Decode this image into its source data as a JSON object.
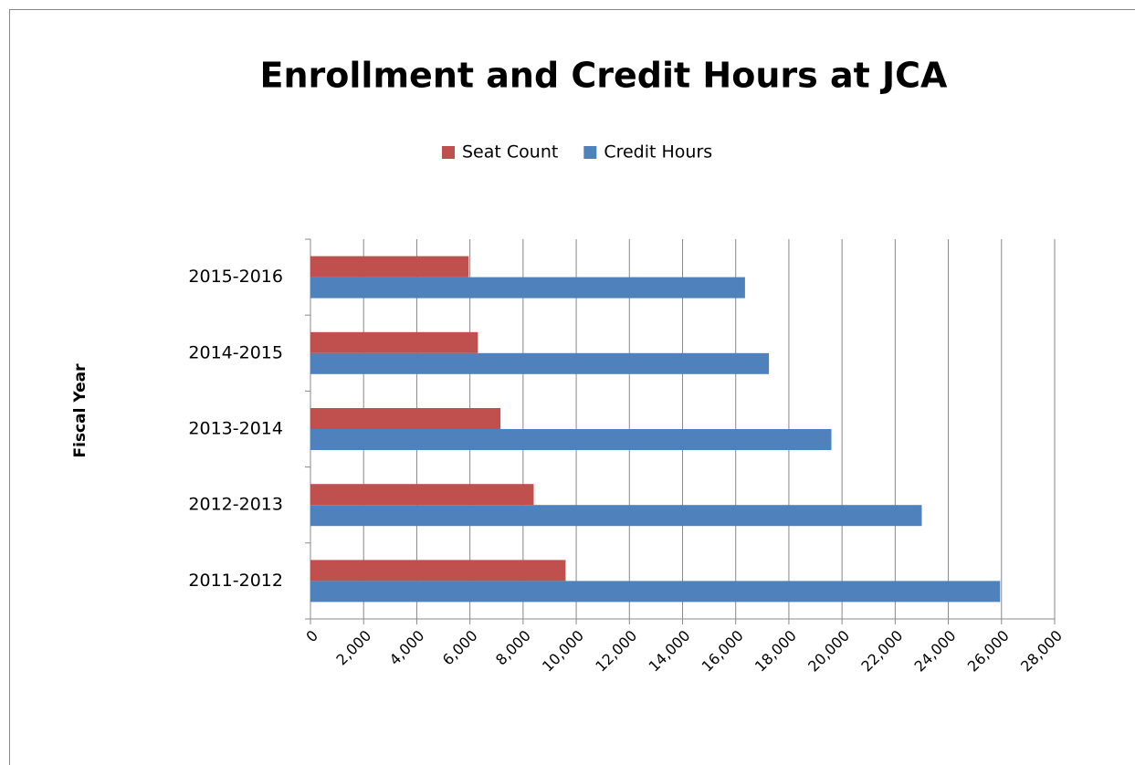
{
  "chart_data": {
    "type": "hbar",
    "title": "Enrollment and Credit Hours at JCA",
    "y_label": "Fiscal Year",
    "categories": [
      "2011-2012",
      "2012-2013",
      "2013-2014",
      "2014-2015",
      "2015-2016"
    ],
    "series": [
      {
        "name": "Seat Count",
        "color": "#c0504d",
        "values": [
          9600,
          8400,
          7150,
          6300,
          5950
        ]
      },
      {
        "name": "Credit Hours",
        "color": "#4f81bd",
        "values": [
          25950,
          23000,
          19600,
          17250,
          16350
        ]
      }
    ],
    "xlim": [
      0,
      28000
    ],
    "xticks": [
      0,
      {
        "value": 2000,
        "label": "2,000"
      },
      {
        "value": 4000,
        "label": "4,000"
      },
      {
        "value": 6000,
        "label": "6,000"
      },
      {
        "value": 8000,
        "label": "8,000"
      },
      {
        "value": 10000,
        "label": "10,000"
      },
      {
        "value": 12000,
        "label": "12,000"
      },
      {
        "value": 14000,
        "label": "14,000"
      },
      {
        "value": 16000,
        "label": "16,000"
      },
      {
        "value": 18000,
        "label": "18,000"
      },
      {
        "value": 20000,
        "label": "20,000"
      },
      {
        "value": 22000,
        "label": "22,000"
      },
      {
        "value": 24000,
        "label": "24,000"
      },
      {
        "value": 26000,
        "label": "26,000"
      },
      {
        "value": 28000,
        "label": "28,000"
      }
    ],
    "grid": true,
    "legend": "top"
  }
}
